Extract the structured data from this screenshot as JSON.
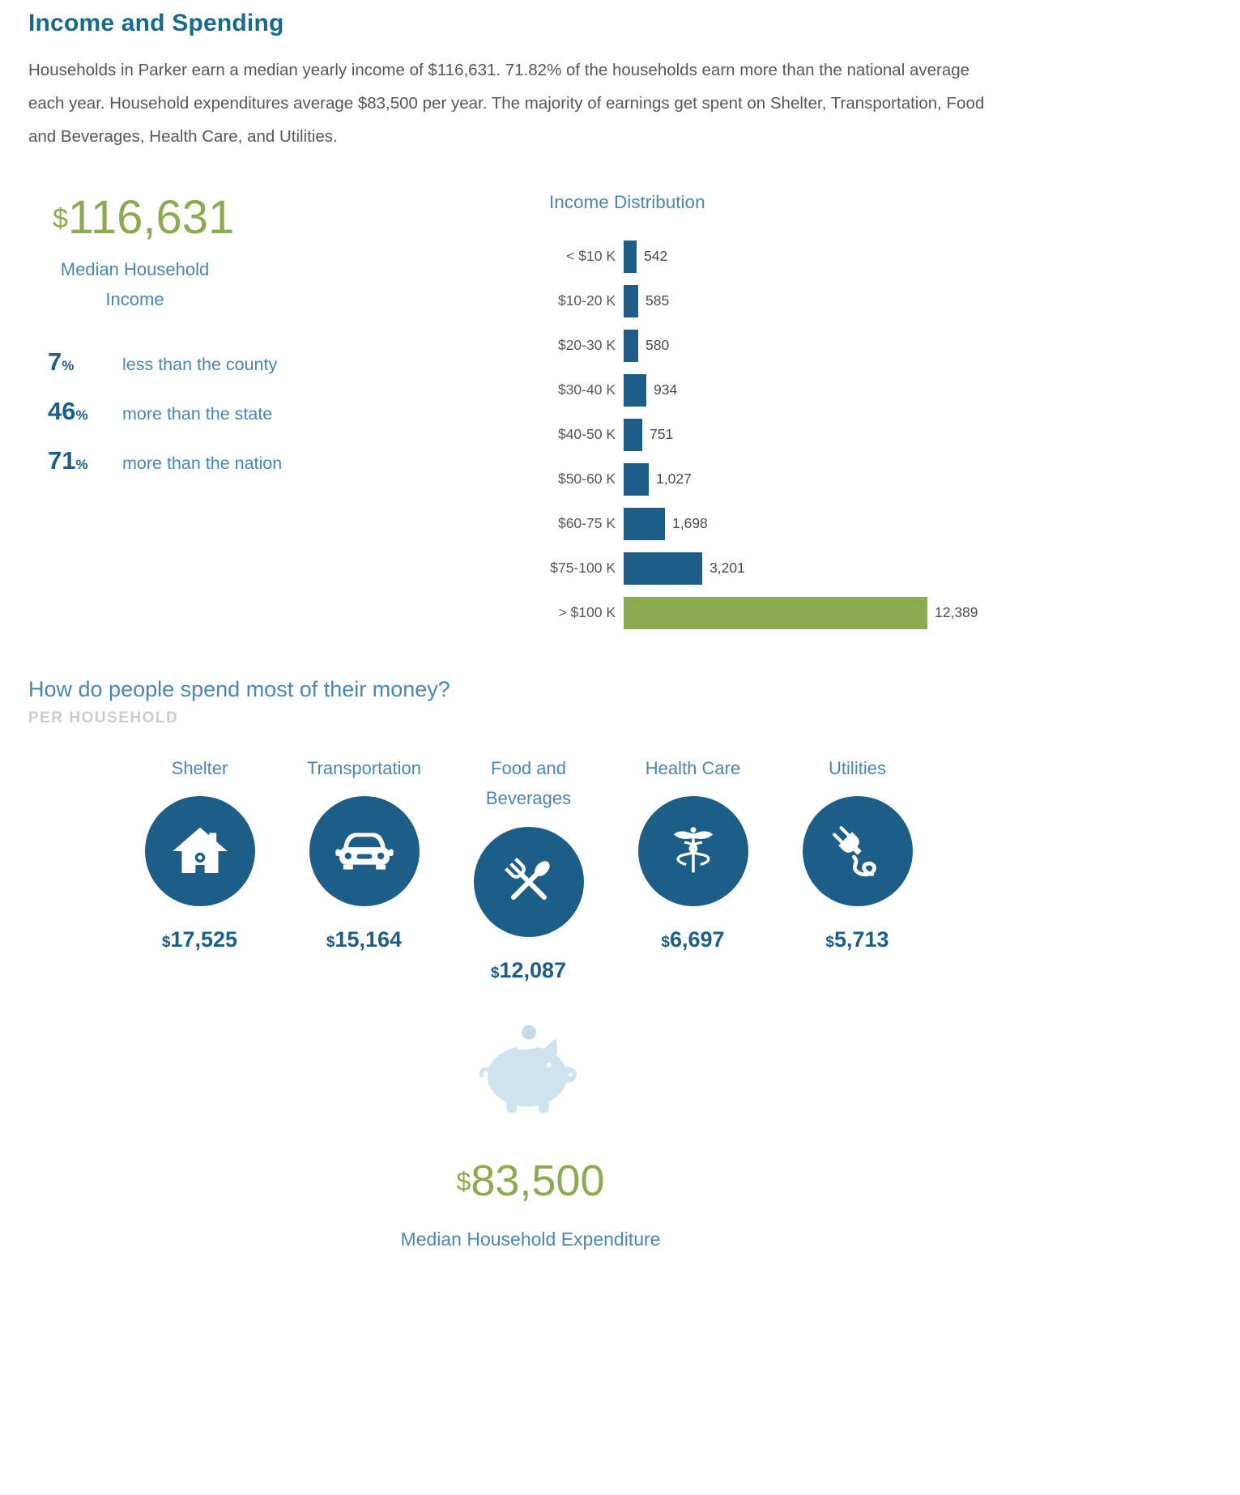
{
  "page": {
    "title": "Income and Spending",
    "intro": "Households in Parker earn a median yearly income of $116,631. 71.82% of the households earn more than the national average each year. Household expenditures average $83,500 per year. The majority of earnings get spent on Shelter, Transportation, Food and Beverages, Health Care, and Utilities."
  },
  "median_income": {
    "currency": "$",
    "value": "116,631",
    "label_line1": "Median Household",
    "label_line2": "Income",
    "comparisons": [
      {
        "value": "7",
        "unit": "%",
        "text": "less than the county"
      },
      {
        "value": "46",
        "unit": "%",
        "text": "more than the state"
      },
      {
        "value": "71",
        "unit": "%",
        "text": "more than the nation"
      }
    ]
  },
  "chart_data": {
    "type": "bar",
    "orientation": "horizontal",
    "title": "Income Distribution",
    "categories": [
      "< $10 K",
      "$10-20 K",
      "$20-30 K",
      "$30-40 K",
      "$40-50 K",
      "$50-60 K",
      "$60-75 K",
      "$75-100 K",
      "> $100 K"
    ],
    "values": [
      542,
      585,
      580,
      934,
      751,
      1027,
      1698,
      3201,
      12389
    ],
    "value_labels": [
      "542",
      "585",
      "580",
      "934",
      "751",
      "1,027",
      "1,698",
      "3,201",
      "12,389"
    ],
    "xlim": [
      0,
      12389
    ],
    "grid": false,
    "legend": false,
    "bar_color": "#1d5e88",
    "highlight_index": 8,
    "highlight_color": "#8cab50"
  },
  "spending": {
    "heading": "How do people spend most of their money?",
    "subheading": "PER HOUSEHOLD",
    "categories": [
      {
        "label": "Shelter",
        "label2": "",
        "icon": "house-icon",
        "currency": "$",
        "amount": "17,525"
      },
      {
        "label": "Transportation",
        "label2": "",
        "icon": "car-icon",
        "currency": "$",
        "amount": "15,164"
      },
      {
        "label": "Food and",
        "label2": "Beverages",
        "icon": "utensils-icon",
        "currency": "$",
        "amount": "12,087"
      },
      {
        "label": "Health Care",
        "label2": "",
        "icon": "caduceus-icon",
        "currency": "$",
        "amount": "6,697"
      },
      {
        "label": "Utilities",
        "label2": "",
        "icon": "plug-icon",
        "currency": "$",
        "amount": "5,713"
      }
    ]
  },
  "expenditure": {
    "icon": "piggy-bank-icon",
    "currency": "$",
    "value": "83,500",
    "label": "Median Household Expenditure"
  },
  "colors": {
    "title": "#176a8c",
    "body_text": "#55575b",
    "green": "#8cab50",
    "blue_text": "#4a86ad",
    "dark_blue": "#1d5e88",
    "subheading_gray": "#c9cbcd",
    "piggy_light_blue": "#cfe3ee"
  }
}
